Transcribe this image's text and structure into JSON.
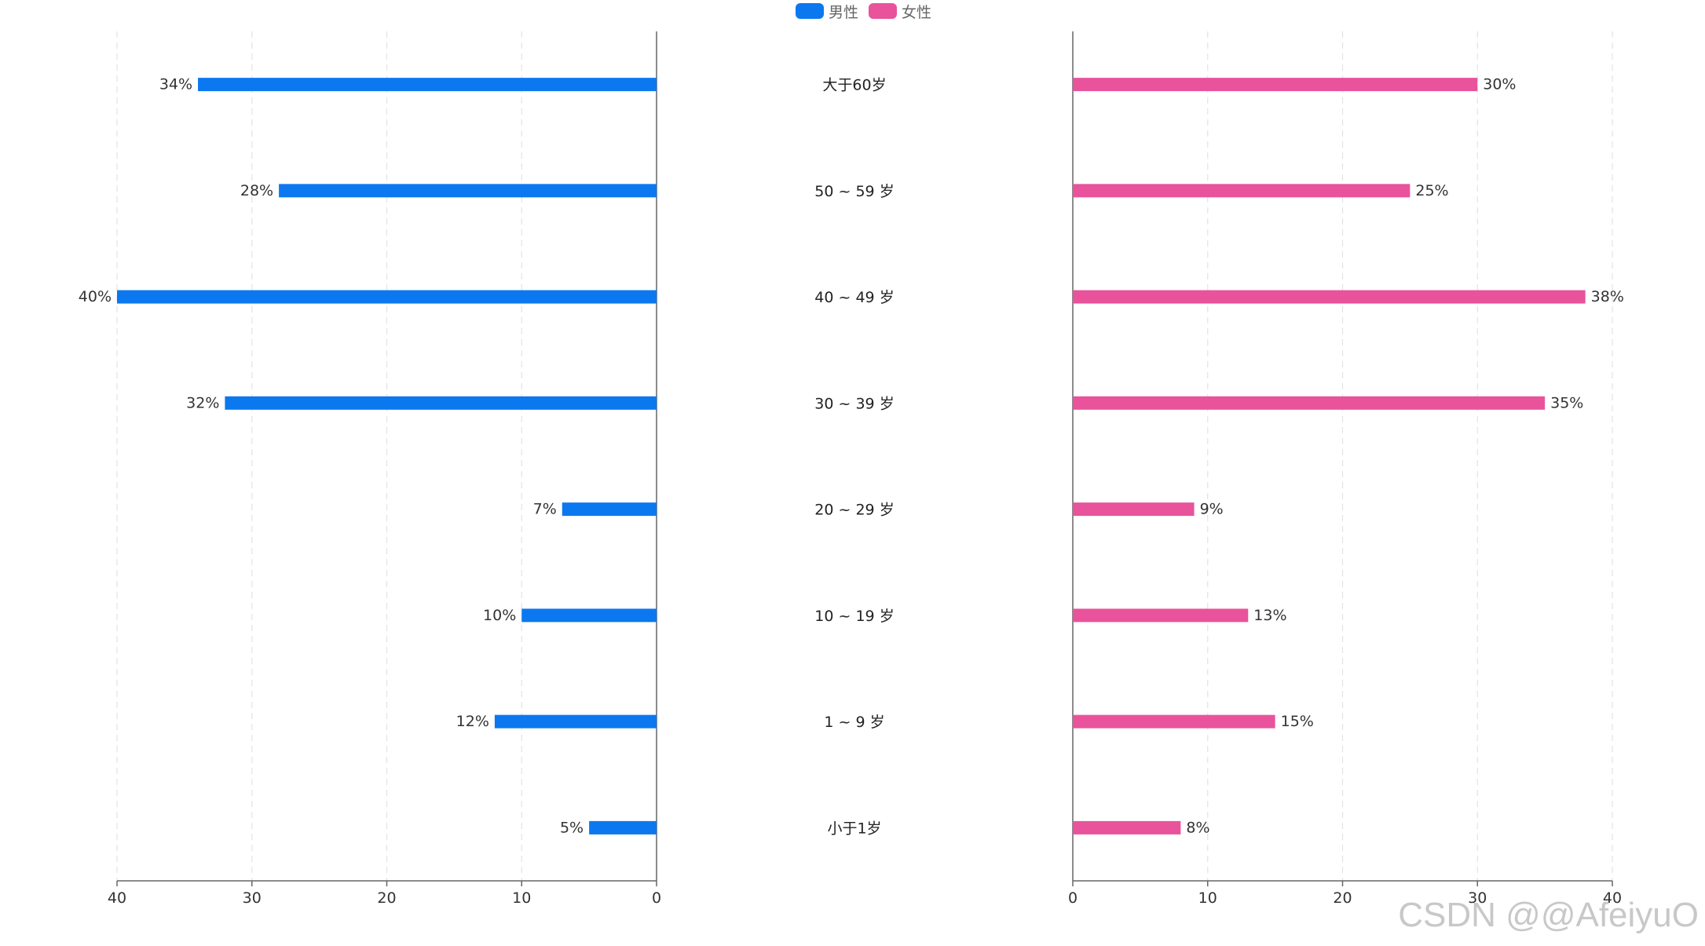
{
  "chart_data": {
    "type": "bar",
    "orientation": "horizontal",
    "layout": "butterfly",
    "categories": [
      "大于60岁",
      "50 ~ 59 岁",
      "40 ~ 49 岁",
      "30 ~ 39 岁",
      "20 ~ 29 岁",
      "10 ~ 19 岁",
      "1 ~ 9 岁",
      "小于1岁"
    ],
    "series": [
      {
        "name": "男性",
        "color": "#0b78f0",
        "side": "left",
        "values": [
          34,
          28,
          40,
          32,
          7,
          10,
          12,
          5
        ],
        "labels": [
          "34%",
          "28%",
          "40%",
          "32%",
          "7%",
          "10%",
          "12%",
          "5%"
        ]
      },
      {
        "name": "女性",
        "color": "#e8539b",
        "side": "right",
        "values": [
          30,
          25,
          38,
          35,
          9,
          13,
          15,
          8
        ],
        "labels": [
          "30%",
          "25%",
          "38%",
          "35%",
          "9%",
          "13%",
          "15%",
          "8%"
        ]
      }
    ],
    "xlim": [
      0,
      40
    ],
    "xticks": [
      "0",
      "10",
      "20",
      "30",
      "40"
    ],
    "grid": true,
    "legend_position": "top-center",
    "title": "",
    "xlabel": "",
    "ylabel": ""
  },
  "watermark": "CSDN @@AfeiyuO"
}
